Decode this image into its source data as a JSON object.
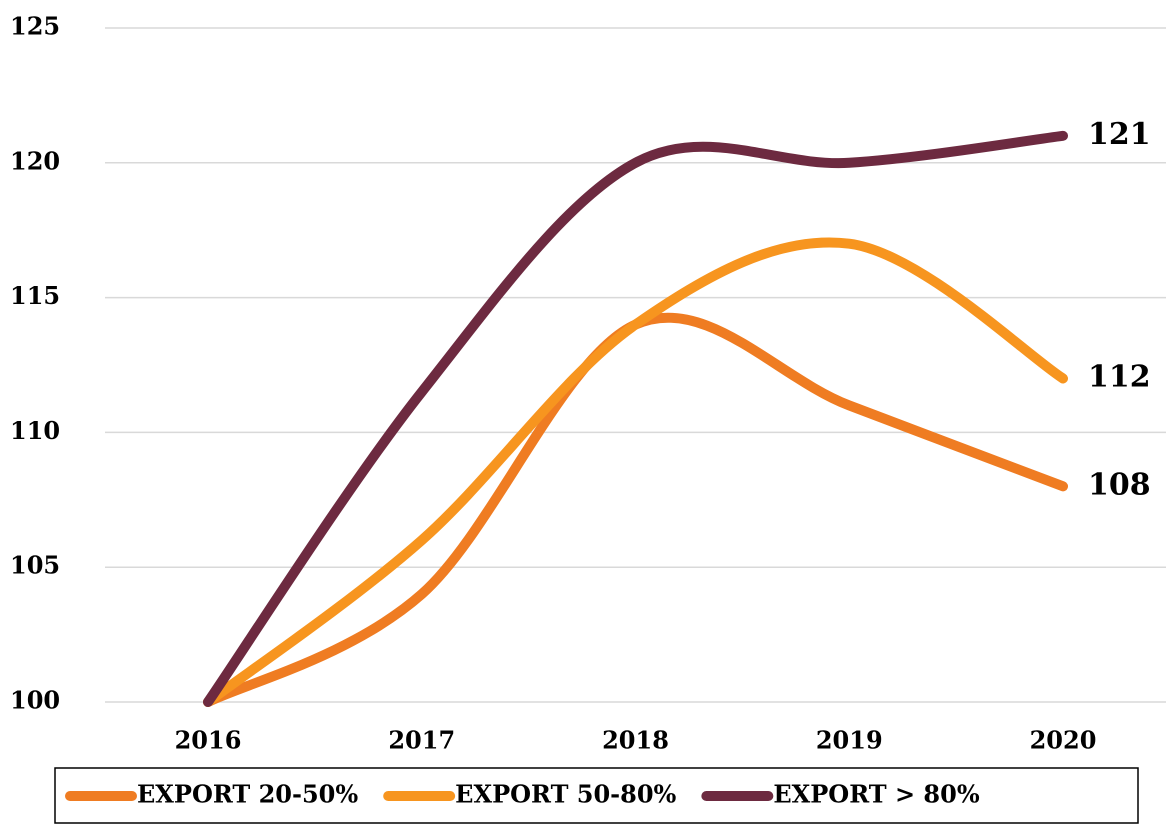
{
  "chart_data": {
    "type": "line",
    "x": [
      "2016",
      "2017",
      "2018",
      "2019",
      "2020"
    ],
    "series": [
      {
        "name": "EXPORT 20-50%",
        "color": "#ef7c22",
        "values": [
          100,
          104,
          114,
          111,
          108
        ]
      },
      {
        "name": "EXPORT 50-80%",
        "color": "#f7951f",
        "values": [
          100,
          106,
          114,
          117,
          112
        ]
      },
      {
        "name": "EXPORT > 80%",
        "color": "#6d2a40",
        "values": [
          100,
          111.5,
          120,
          120,
          121
        ]
      }
    ],
    "ylim": [
      100,
      125
    ],
    "yticks": [
      100,
      105,
      110,
      115,
      120,
      125
    ],
    "grid": true,
    "smooth": true,
    "data_labels": "last",
    "legend": "bottom"
  }
}
